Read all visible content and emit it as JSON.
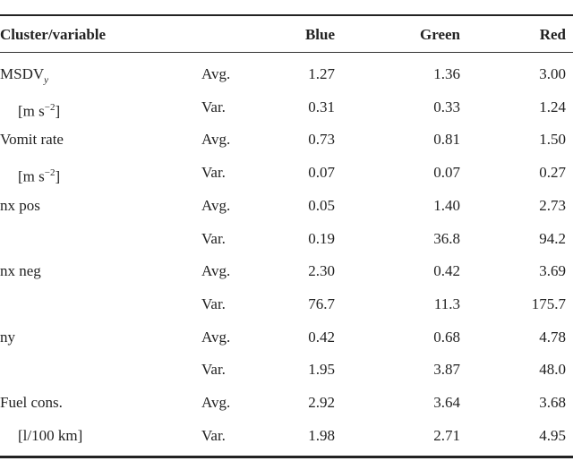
{
  "table": {
    "headers": [
      "Cluster/variable",
      "",
      "Blue",
      "Green",
      "Red"
    ],
    "rows": [
      {
        "label": "MSDV",
        "label_sub": "y",
        "stat": "Avg.",
        "blue": "1.27",
        "green": "1.36",
        "red": "3.00"
      },
      {
        "label": "[m s",
        "label_sup": "−2",
        "label_end": "]",
        "stat": "Var.",
        "blue": "0.31",
        "green": "0.33",
        "red": "1.24"
      },
      {
        "label": "Vomit rate",
        "stat": "Avg.",
        "blue": "0.73",
        "green": "0.81",
        "red": "1.50"
      },
      {
        "label": "[m s",
        "label_sup": "−2",
        "label_end": "]",
        "stat": "Var.",
        "blue": "0.07",
        "green": "0.07",
        "red": "0.27"
      },
      {
        "label": "nx pos",
        "stat": "Avg.",
        "blue": "0.05",
        "green": "1.40",
        "red": "2.73"
      },
      {
        "label": "",
        "stat": "Var.",
        "blue": "0.19",
        "green": "36.8",
        "red": "94.2"
      },
      {
        "label": "nx neg",
        "stat": "Avg.",
        "blue": "2.30",
        "green": "0.42",
        "red": "3.69"
      },
      {
        "label": "",
        "stat": "Var.",
        "blue": "76.7",
        "green": "11.3",
        "red": "175.7"
      },
      {
        "label": "ny",
        "stat": "Avg.",
        "blue": "0.42",
        "green": "0.68",
        "red": "4.78"
      },
      {
        "label": "",
        "stat": "Var.",
        "blue": "1.95",
        "green": "3.87",
        "red": "48.0"
      },
      {
        "label": "Fuel cons.",
        "stat": "Avg.",
        "blue": "2.92",
        "green": "3.64",
        "red": "3.68"
      },
      {
        "label": "[l/100 km]",
        "stat": "Var.",
        "blue": "1.98",
        "green": "2.71",
        "red": "4.95"
      }
    ]
  }
}
